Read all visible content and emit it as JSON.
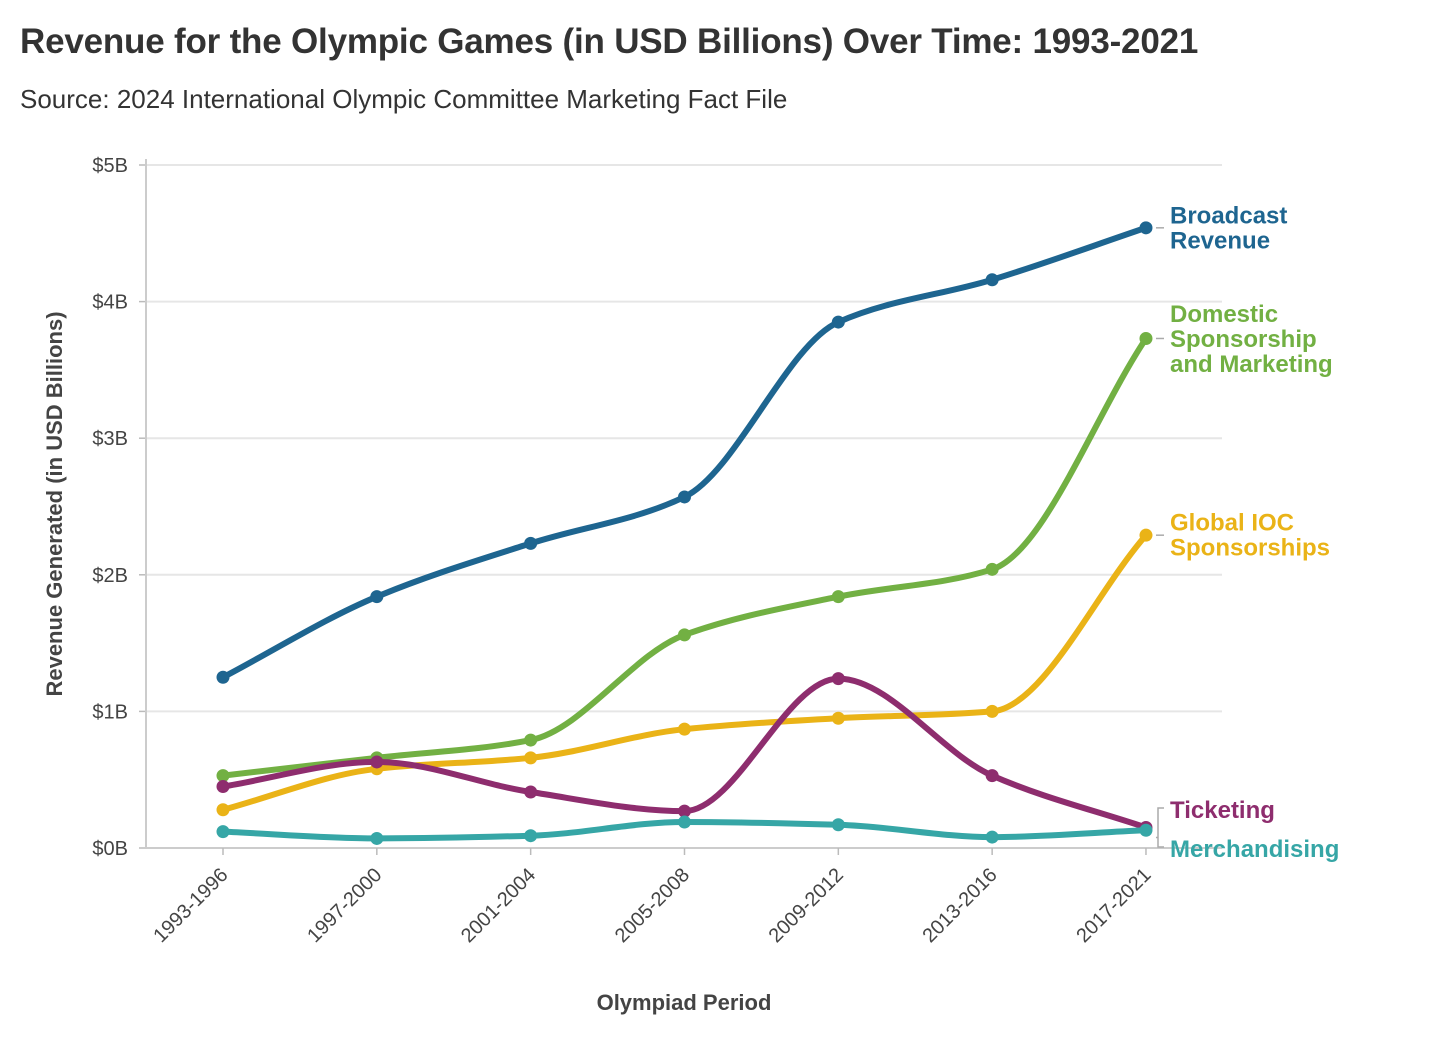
{
  "chart_data": {
    "type": "line",
    "title": "Revenue for the Olympic Games (in USD Billions) Over Time: 1993-2021",
    "subtitle": "Source: 2024 International Olympic Committee Marketing Fact File",
    "xlabel": "Olympiad Period",
    "ylabel": "Revenue Generated (in USD Billions)",
    "ylim": [
      0,
      5
    ],
    "yticks": [
      0,
      1,
      2,
      3,
      4,
      5
    ],
    "ytick_labels": [
      "$0B",
      "$1B",
      "$2B",
      "$3B",
      "$4B",
      "$5B"
    ],
    "grid": true,
    "legend": "direct labels at right",
    "categories": [
      "1993-1996",
      "1997-2000",
      "2001-2004",
      "2005-2008",
      "2009-2012",
      "2013-2016",
      "2017-2021"
    ],
    "series": [
      {
        "name": "Broadcast Revenue",
        "label_lines": [
          "Broadcast",
          "Revenue"
        ],
        "color": "#1e6590",
        "values": [
          1.25,
          1.84,
          2.23,
          2.57,
          3.85,
          4.16,
          4.54
        ]
      },
      {
        "name": "Domestic Sponsorship and Marketing",
        "label_lines": [
          "Domestic",
          "Sponsorship",
          "and Marketing"
        ],
        "color": "#72b043",
        "values": [
          0.53,
          0.66,
          0.79,
          1.56,
          1.84,
          2.04,
          3.73
        ]
      },
      {
        "name": "Global IOC Sponsorships",
        "label_lines": [
          "Global IOC",
          "Sponsorships"
        ],
        "color": "#eab317",
        "values": [
          0.28,
          0.58,
          0.66,
          0.87,
          0.95,
          1.0,
          2.29
        ]
      },
      {
        "name": "Ticketing",
        "label_lines": [
          "Ticketing"
        ],
        "color": "#8e2d6e",
        "values": [
          0.45,
          0.63,
          0.41,
          0.27,
          1.24,
          0.53,
          0.15
        ]
      },
      {
        "name": "Merchandising",
        "label_lines": [
          "Merchandising"
        ],
        "color": "#36a6a6",
        "values": [
          0.12,
          0.07,
          0.09,
          0.19,
          0.17,
          0.08,
          0.13
        ]
      }
    ]
  }
}
